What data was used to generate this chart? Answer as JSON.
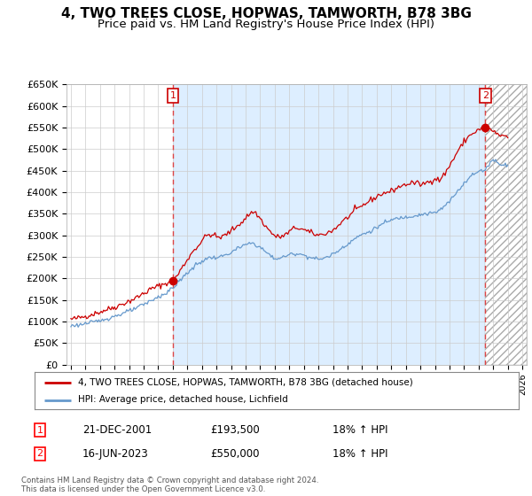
{
  "title": "4, TWO TREES CLOSE, HOPWAS, TAMWORTH, B78 3BG",
  "subtitle": "Price paid vs. HM Land Registry's House Price Index (HPI)",
  "title_fontsize": 11,
  "subtitle_fontsize": 9.5,
  "background_color": "#ffffff",
  "plot_background": "#ffffff",
  "plot_fill_color": "#ddeeff",
  "hatch_fill_color": "#e8e8e8",
  "grid_color": "#cccccc",
  "red_line_color": "#cc0000",
  "blue_line_color": "#6699cc",
  "vline_color": "#dd4444",
  "ylim": [
    0,
    650000
  ],
  "yticks": [
    0,
    50000,
    100000,
    150000,
    200000,
    250000,
    300000,
    350000,
    400000,
    450000,
    500000,
    550000,
    600000,
    650000
  ],
  "xlim_start": 1994.7,
  "xlim_end": 2026.3,
  "marker1_x": 2002.0,
  "marker1_y": 193500,
  "marker2_x": 2023.46,
  "marker2_y": 550000,
  "legend_red_label": "4, TWO TREES CLOSE, HOPWAS, TAMWORTH, B78 3BG (detached house)",
  "legend_blue_label": "HPI: Average price, detached house, Lichfield",
  "table_row1": [
    "1",
    "21-DEC-2001",
    "£193,500",
    "18% ↑ HPI"
  ],
  "table_row2": [
    "2",
    "16-JUN-2023",
    "£550,000",
    "18% ↑ HPI"
  ],
  "footnote": "Contains HM Land Registry data © Crown copyright and database right 2024.\nThis data is licensed under the Open Government Licence v3.0."
}
